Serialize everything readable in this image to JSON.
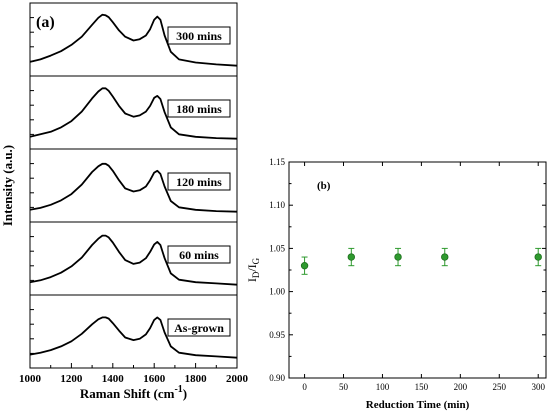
{
  "chart_data": [
    {
      "type": "line",
      "panel_label": "(a)",
      "xlabel_main": "Raman Shift (cm",
      "xlabel_sup": "-1",
      "xlabel_end": ")",
      "ylabel": "Intensity (a.u.)",
      "xlim": [
        1000,
        2000
      ],
      "xticks": [
        "1000",
        "1200",
        "1400",
        "1600",
        "1800",
        "2000"
      ],
      "series": [
        {
          "name": "300 mins",
          "x": [
            1000,
            1050,
            1100,
            1150,
            1200,
            1250,
            1300,
            1330,
            1350,
            1365,
            1380,
            1400,
            1430,
            1460,
            1500,
            1530,
            1560,
            1580,
            1600,
            1615,
            1630,
            1650,
            1680,
            1720,
            1800,
            1900,
            2000
          ],
          "y": [
            0.16,
            0.2,
            0.26,
            0.33,
            0.43,
            0.56,
            0.75,
            0.86,
            0.91,
            0.9,
            0.87,
            0.79,
            0.66,
            0.56,
            0.5,
            0.52,
            0.58,
            0.68,
            0.83,
            0.88,
            0.83,
            0.58,
            0.32,
            0.2,
            0.15,
            0.12,
            0.1
          ]
        },
        {
          "name": "180 mins",
          "x": [
            1000,
            1050,
            1100,
            1150,
            1200,
            1250,
            1300,
            1330,
            1350,
            1365,
            1380,
            1400,
            1430,
            1460,
            1500,
            1530,
            1560,
            1580,
            1600,
            1615,
            1630,
            1650,
            1680,
            1720,
            1800,
            1900,
            2000
          ],
          "y": [
            0.13,
            0.17,
            0.21,
            0.28,
            0.38,
            0.53,
            0.74,
            0.85,
            0.9,
            0.9,
            0.86,
            0.77,
            0.62,
            0.5,
            0.45,
            0.47,
            0.53,
            0.62,
            0.75,
            0.78,
            0.73,
            0.52,
            0.28,
            0.17,
            0.13,
            0.11,
            0.1
          ]
        },
        {
          "name": "120 mins",
          "x": [
            1000,
            1050,
            1100,
            1150,
            1200,
            1250,
            1300,
            1330,
            1350,
            1365,
            1380,
            1400,
            1430,
            1460,
            1500,
            1530,
            1560,
            1580,
            1600,
            1615,
            1630,
            1650,
            1680,
            1720,
            1800,
            1900,
            2000
          ],
          "y": [
            0.13,
            0.16,
            0.21,
            0.28,
            0.38,
            0.53,
            0.73,
            0.82,
            0.86,
            0.86,
            0.83,
            0.75,
            0.6,
            0.47,
            0.42,
            0.44,
            0.5,
            0.6,
            0.72,
            0.75,
            0.7,
            0.5,
            0.27,
            0.17,
            0.13,
            0.11,
            0.1
          ]
        },
        {
          "name": "60 mins",
          "x": [
            1000,
            1050,
            1100,
            1150,
            1200,
            1250,
            1300,
            1330,
            1350,
            1365,
            1380,
            1400,
            1430,
            1460,
            1500,
            1530,
            1560,
            1580,
            1600,
            1615,
            1630,
            1650,
            1680,
            1720,
            1800,
            1900,
            2000
          ],
          "y": [
            0.14,
            0.17,
            0.22,
            0.29,
            0.39,
            0.53,
            0.73,
            0.83,
            0.88,
            0.88,
            0.85,
            0.77,
            0.62,
            0.49,
            0.43,
            0.45,
            0.52,
            0.62,
            0.74,
            0.78,
            0.73,
            0.52,
            0.28,
            0.18,
            0.14,
            0.12,
            0.1
          ]
        },
        {
          "name": "As-grown",
          "x": [
            1000,
            1050,
            1100,
            1150,
            1200,
            1250,
            1300,
            1330,
            1350,
            1365,
            1380,
            1400,
            1430,
            1460,
            1500,
            1530,
            1560,
            1580,
            1600,
            1615,
            1630,
            1650,
            1680,
            1720,
            1800,
            1900,
            2000
          ],
          "y": [
            0.15,
            0.18,
            0.22,
            0.28,
            0.36,
            0.48,
            0.63,
            0.71,
            0.74,
            0.74,
            0.72,
            0.65,
            0.53,
            0.42,
            0.38,
            0.4,
            0.47,
            0.57,
            0.7,
            0.74,
            0.7,
            0.5,
            0.28,
            0.18,
            0.14,
            0.12,
            0.1
          ]
        }
      ]
    },
    {
      "type": "scatter",
      "panel_label": "(b)",
      "xlabel": "Reduction Time (min)",
      "ylabel_main": "I",
      "ylabel_sub1": "D",
      "ylabel_mid": "/I",
      "ylabel_sub2": "G",
      "xlim": [
        -20,
        310
      ],
      "ylim": [
        0.9,
        1.15
      ],
      "xticks": [
        "0",
        "50",
        "100",
        "150",
        "200",
        "250",
        "300"
      ],
      "yticks": [
        "0.90",
        "0.95",
        "1.00",
        "1.05",
        "1.10",
        "1.15"
      ],
      "x": [
        0,
        60,
        120,
        180,
        300
      ],
      "y": [
        1.03,
        1.04,
        1.04,
        1.04,
        1.04
      ],
      "error": [
        0.01,
        0.01,
        0.01,
        0.01,
        0.01
      ],
      "marker_color": "#2e9a2e",
      "error_color": "#2e9a2e"
    }
  ]
}
